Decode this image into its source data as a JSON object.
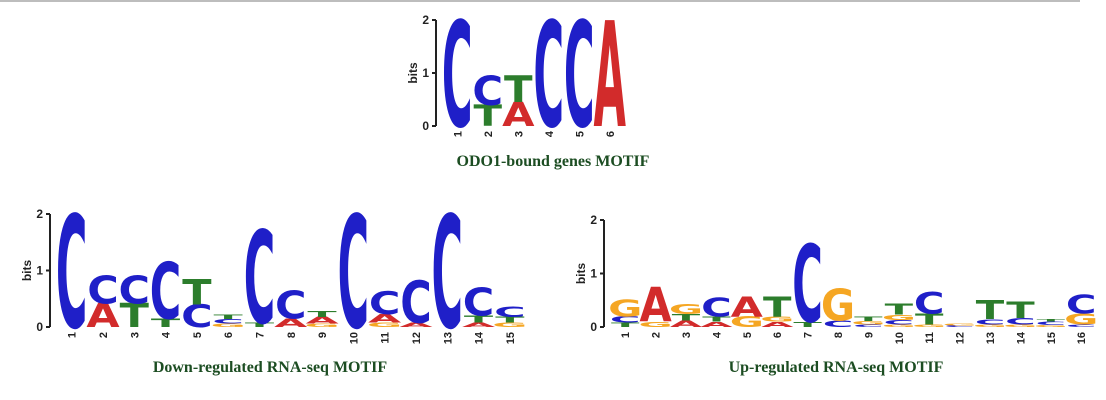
{
  "colors": {
    "A": "#d22b2b",
    "C": "#1f1fc8",
    "G": "#f5a623",
    "T": "#2c7d2c",
    "caption": "#1c4d22"
  },
  "captions": {
    "top": "ODO1-bound genes MOTIF",
    "left": "Down-regulated RNA-seq MOTIF",
    "right": "Up-regulated RNA-seq MOTIF"
  },
  "logos": [
    {
      "id": "odo1",
      "ylabel": "bits",
      "yticks": [
        "0",
        "1",
        "2"
      ],
      "ymax": 2,
      "positions": [
        [
          [
            "C",
            2.0
          ]
        ],
        [
          [
            "T",
            0.4
          ],
          [
            "C",
            0.55
          ]
        ],
        [
          [
            "A",
            0.45
          ],
          [
            "T",
            0.5
          ]
        ],
        [
          [
            "C",
            2.0
          ]
        ],
        [
          [
            "C",
            2.0
          ]
        ],
        [
          [
            "A",
            2.0
          ]
        ]
      ]
    },
    {
      "id": "down",
      "ylabel": "bits",
      "yticks": [
        "0",
        "1",
        "2"
      ],
      "ymax": 2,
      "positions": [
        [
          [
            "C",
            2.0
          ]
        ],
        [
          [
            "A",
            0.42
          ],
          [
            "C",
            0.5
          ]
        ],
        [
          [
            "T",
            0.42
          ],
          [
            "C",
            0.5
          ]
        ],
        [
          [
            "T",
            0.15
          ],
          [
            "C",
            1.0
          ]
        ],
        [
          [
            "C",
            0.4
          ],
          [
            "T",
            0.45
          ]
        ],
        [
          [
            "G",
            0.06
          ],
          [
            "C",
            0.08
          ],
          [
            "T",
            0.08
          ]
        ],
        [
          [
            "T",
            0.08
          ],
          [
            "C",
            1.65
          ]
        ],
        [
          [
            "A",
            0.15
          ],
          [
            "C",
            0.5
          ]
        ],
        [
          [
            "G",
            0.06
          ],
          [
            "A",
            0.12
          ],
          [
            "T",
            0.1
          ]
        ],
        [
          [
            "C",
            2.0
          ]
        ],
        [
          [
            "G",
            0.08
          ],
          [
            "A",
            0.15
          ],
          [
            "C",
            0.4
          ]
        ],
        [
          [
            "A",
            0.08
          ],
          [
            "C",
            0.75
          ]
        ],
        [
          [
            "C",
            2.0
          ]
        ],
        [
          [
            "A",
            0.08
          ],
          [
            "T",
            0.12
          ],
          [
            "C",
            0.5
          ]
        ],
        [
          [
            "G",
            0.08
          ],
          [
            "T",
            0.1
          ],
          [
            "C",
            0.18
          ]
        ]
      ]
    },
    {
      "id": "up",
      "ylabel": "bits",
      "yticks": [
        "0",
        "1",
        "2"
      ],
      "ymax": 2,
      "positions": [
        [
          [
            "T",
            0.08
          ],
          [
            "C",
            0.12
          ],
          [
            "G",
            0.32
          ]
        ],
        [
          [
            "G",
            0.1
          ],
          [
            "A",
            0.65
          ]
        ],
        [
          [
            "A",
            0.12
          ],
          [
            "T",
            0.12
          ],
          [
            "G",
            0.18
          ]
        ],
        [
          [
            "A",
            0.1
          ],
          [
            "T",
            0.1
          ],
          [
            "C",
            0.35
          ]
        ],
        [
          [
            "G",
            0.2
          ],
          [
            "A",
            0.38
          ]
        ],
        [
          [
            "A",
            0.1
          ],
          [
            "G",
            0.1
          ],
          [
            "T",
            0.38
          ]
        ],
        [
          [
            "T",
            0.1
          ],
          [
            "C",
            1.45
          ]
        ],
        [
          [
            "C",
            0.12
          ],
          [
            "G",
            0.6
          ]
        ],
        [
          [
            "C",
            0.05
          ],
          [
            "G",
            0.06
          ],
          [
            "T",
            0.08
          ]
        ],
        [
          [
            "G",
            0.05
          ],
          [
            "C",
            0.08
          ],
          [
            "G",
            0.1
          ],
          [
            "T",
            0.2
          ]
        ],
        [
          [
            "G",
            0.05
          ],
          [
            "T",
            0.2
          ],
          [
            "C",
            0.4
          ]
        ],
        [
          [
            "C",
            0.03
          ],
          [
            "G",
            0.03
          ]
        ],
        [
          [
            "G",
            0.05
          ],
          [
            "C",
            0.1
          ],
          [
            "T",
            0.35
          ]
        ],
        [
          [
            "G",
            0.05
          ],
          [
            "C",
            0.12
          ],
          [
            "T",
            0.3
          ]
        ],
        [
          [
            "G",
            0.04
          ],
          [
            "C",
            0.06
          ],
          [
            "T",
            0.05
          ]
        ],
        [
          [
            "C",
            0.05
          ],
          [
            "G",
            0.2
          ],
          [
            "C",
            0.35
          ]
        ]
      ]
    }
  ]
}
